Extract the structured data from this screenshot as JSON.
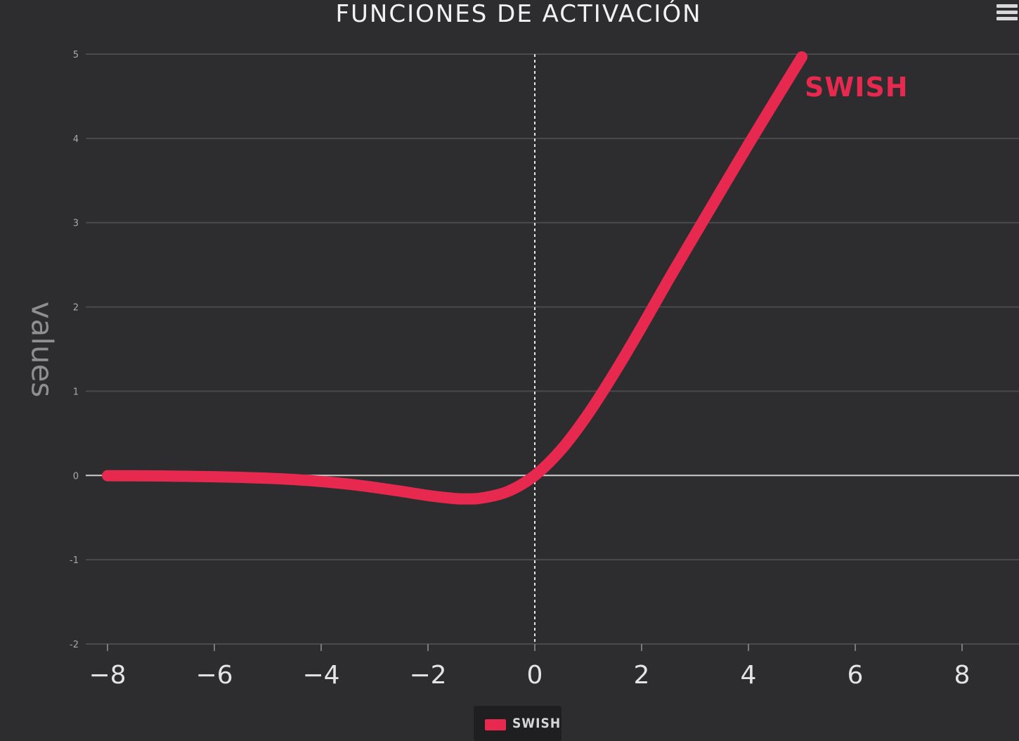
{
  "chart_data": {
    "type": "line",
    "title": "FUNCIONES DE ACTIVACIÓN",
    "ylabel": "values",
    "xlim": [
      -8,
      9
    ],
    "ylim": [
      -2,
      5
    ],
    "xticks": [
      -8,
      -6,
      -4,
      -2,
      0,
      2,
      4,
      6,
      8
    ],
    "yticks": [
      -2,
      -1,
      0,
      1,
      2,
      3,
      4,
      5
    ],
    "grid": true,
    "zero_line": true,
    "vertical_marker_x": 0,
    "legend": {
      "position": "bottom-center",
      "entries": [
        "SWISH"
      ]
    },
    "series": [
      {
        "name": "SWISH",
        "color": "#e8294f",
        "x": [
          -8,
          -7.5,
          -7,
          -6.5,
          -6,
          -5.5,
          -5,
          -4.5,
          -4,
          -3.5,
          -3,
          -2.5,
          -2,
          -1.5,
          -1.278,
          -1,
          -0.5,
          0,
          0.5,
          1,
          1.5,
          2,
          2.5,
          3,
          3.5,
          4,
          4.5,
          5
        ],
        "values": [
          -0.003,
          -0.004,
          -0.006,
          -0.01,
          -0.015,
          -0.023,
          -0.033,
          -0.049,
          -0.072,
          -0.102,
          -0.142,
          -0.188,
          -0.238,
          -0.274,
          -0.278,
          -0.269,
          -0.189,
          0.0,
          0.311,
          0.731,
          1.226,
          1.762,
          2.319,
          2.858,
          3.395,
          3.928,
          4.45,
          4.967
        ],
        "label": "SWISH"
      }
    ]
  },
  "ui": {
    "menu_icon": "hamburger-menu-icon"
  }
}
